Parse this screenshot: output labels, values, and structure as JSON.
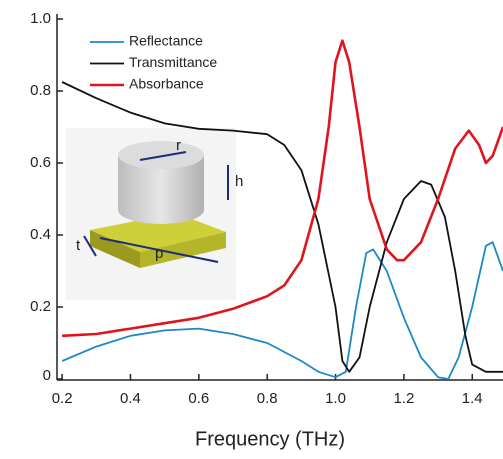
{
  "chart_data": {
    "type": "line",
    "x_label": "Frequency (THz)",
    "xlim": [
      0.185,
      1.49
    ],
    "ylim": [
      0,
      1
    ],
    "xticks": [
      0.2,
      0.4,
      0.6,
      0.8,
      {
        "value": 1,
        "label": "1.0"
      },
      1.2,
      1.4
    ],
    "yticks": [
      0,
      0.2,
      0.4,
      0.6,
      0.8,
      {
        "value": 1,
        "label": "1.0"
      }
    ],
    "legend": "upper left",
    "series": [
      {
        "name": "Reflectance",
        "color": "#1d88c6",
        "x": [
          0.2,
          0.3,
          0.4,
          0.5,
          0.6,
          0.7,
          0.8,
          0.9,
          0.95,
          1.0,
          1.03,
          1.06,
          1.09,
          1.11,
          1.15,
          1.2,
          1.25,
          1.3,
          1.33,
          1.36,
          1.4,
          1.44,
          1.46,
          1.49
        ],
        "values": [
          0.05,
          0.09,
          0.12,
          0.135,
          0.14,
          0.125,
          0.1,
          0.05,
          0.02,
          0.005,
          0.02,
          0.2,
          0.35,
          0.36,
          0.3,
          0.17,
          0.06,
          0.005,
          0.0,
          0.06,
          0.2,
          0.37,
          0.38,
          0.3
        ]
      },
      {
        "name": "Transmittance",
        "color": "#111111",
        "x": [
          0.2,
          0.3,
          0.4,
          0.5,
          0.6,
          0.7,
          0.8,
          0.85,
          0.9,
          0.95,
          1.0,
          1.02,
          1.04,
          1.07,
          1.1,
          1.15,
          1.2,
          1.25,
          1.28,
          1.32,
          1.35,
          1.38,
          1.4,
          1.44,
          1.49
        ],
        "values": [
          0.825,
          0.78,
          0.74,
          0.71,
          0.695,
          0.69,
          0.68,
          0.65,
          0.58,
          0.43,
          0.2,
          0.05,
          0.02,
          0.06,
          0.2,
          0.38,
          0.5,
          0.55,
          0.54,
          0.45,
          0.3,
          0.12,
          0.04,
          0.02,
          0.02
        ]
      },
      {
        "name": "Absorbance",
        "color": "#e0141e",
        "x": [
          0.2,
          0.3,
          0.4,
          0.5,
          0.6,
          0.7,
          0.8,
          0.85,
          0.9,
          0.95,
          0.98,
          1.0,
          1.02,
          1.04,
          1.07,
          1.1,
          1.15,
          1.18,
          1.2,
          1.25,
          1.3,
          1.35,
          1.39,
          1.42,
          1.44,
          1.46,
          1.49
        ],
        "values": [
          0.12,
          0.125,
          0.14,
          0.155,
          0.17,
          0.195,
          0.23,
          0.26,
          0.33,
          0.5,
          0.7,
          0.88,
          0.94,
          0.88,
          0.7,
          0.5,
          0.36,
          0.33,
          0.33,
          0.38,
          0.5,
          0.64,
          0.69,
          0.65,
          0.6,
          0.62,
          0.7
        ]
      }
    ],
    "inset_labels": [
      "r",
      "h",
      "t",
      "p"
    ]
  }
}
